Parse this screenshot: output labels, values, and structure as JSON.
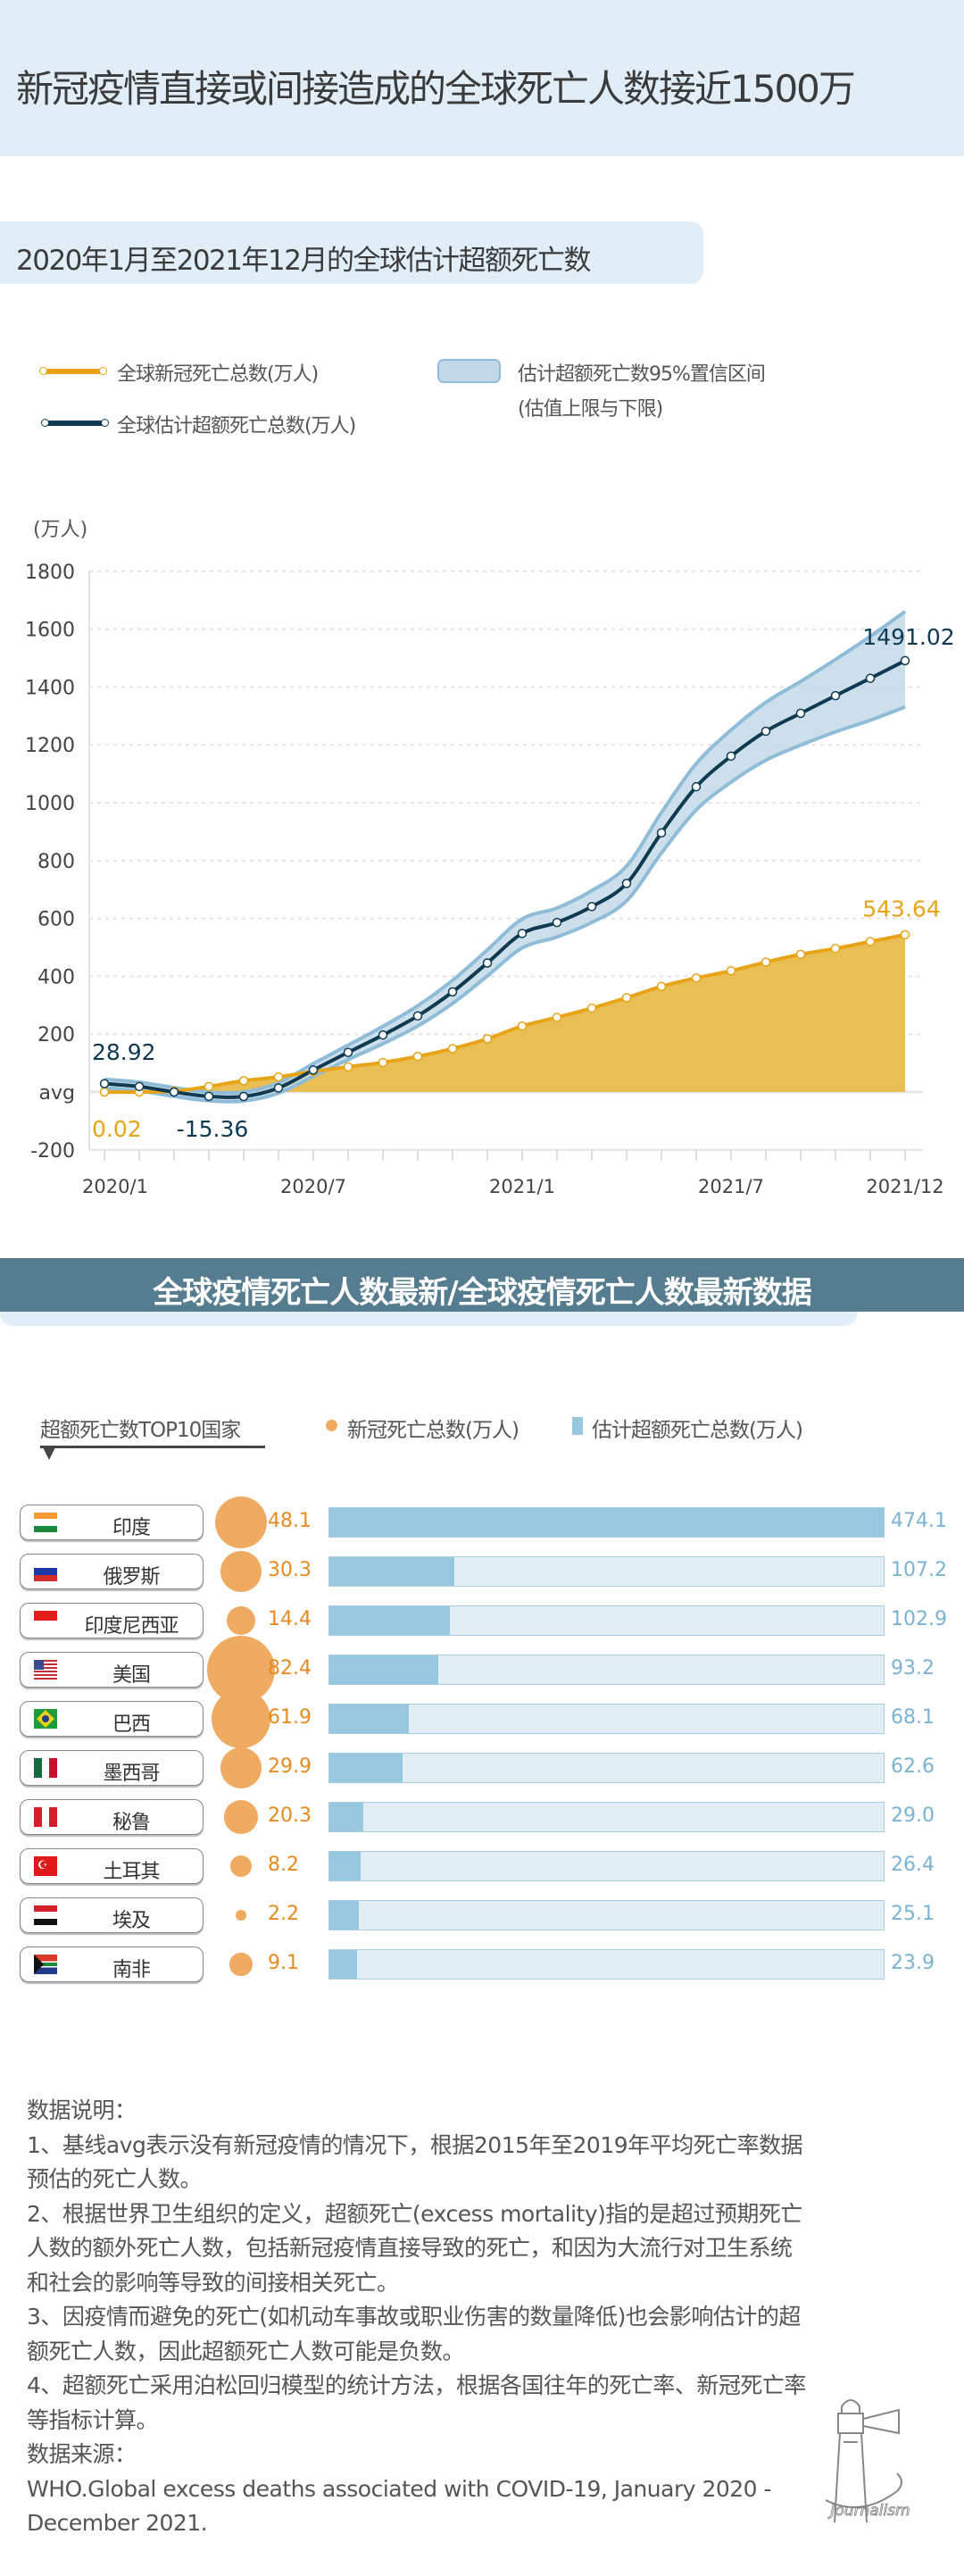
{
  "header": {
    "title": "新冠疫情直接或间接造成的全球死亡人数接近1500万"
  },
  "chart_section": {
    "subtitle": "2020年1月至2021年12月的全球估计超额死亡数"
  },
  "chart_data": {
    "type": "line",
    "title": "2020年1月至2021年12月的全球估计超额死亡数",
    "ylabel": "(万人)",
    "ylim": [
      -200,
      1800
    ],
    "yticks": [
      "-200",
      "avg",
      "200",
      "400",
      "600",
      "800",
      "1000",
      "1200",
      "1400",
      "1600",
      "1800"
    ],
    "ytick_values": [
      -200,
      0,
      200,
      400,
      600,
      800,
      1000,
      1200,
      1400,
      1600,
      1800
    ],
    "xticks": [
      "2020/1",
      "2020/7",
      "2021/1",
      "2021/7",
      "2021/12"
    ],
    "xtick_indices": [
      0,
      6,
      12,
      18,
      23
    ],
    "grid": true,
    "legend_position": "top",
    "x": [
      "2020/1",
      "2020/2",
      "2020/3",
      "2020/4",
      "2020/5",
      "2020/6",
      "2020/7",
      "2020/8",
      "2020/9",
      "2020/10",
      "2020/11",
      "2020/12",
      "2021/1",
      "2021/2",
      "2021/3",
      "2021/4",
      "2021/5",
      "2021/6",
      "2021/7",
      "2021/8",
      "2021/9",
      "2021/10",
      "2021/11",
      "2021/12"
    ],
    "series": [
      {
        "name": "全球新冠死亡总数(万人)",
        "color": "#e8a317",
        "fill": "#e9bf55",
        "values": [
          0.02,
          0,
          3,
          19,
          39,
          52,
          71,
          87,
          102,
          123,
          150,
          184,
          228,
          258,
          290,
          326,
          365,
          394,
          419,
          449,
          476,
          496,
          520,
          543.64
        ]
      },
      {
        "name": "全球估计超额死亡总数(万人)",
        "color": "#0f3a52",
        "values": [
          28.92,
          19,
          0,
          -15,
          -15.36,
          14,
          76,
          137,
          197,
          263,
          346,
          446,
          548,
          586,
          641,
          721,
          896,
          1055,
          1161,
          1247,
          1309,
          1370,
          1430,
          1491.02
        ]
      }
    ],
    "band": {
      "name": "估计超额死亡数95%置信区间 (估值上限与下限)",
      "color": "#c3d9e8",
      "edge": "#8fbcd8",
      "upper": [
        44,
        34,
        15,
        0,
        0,
        32,
        98,
        162,
        227,
        298,
        386,
        491,
        598,
        636,
        696,
        781,
        966,
        1135,
        1251,
        1347,
        1419,
        1495,
        1575,
        1661
      ],
      "lower": [
        14,
        4,
        -15,
        -30,
        -31,
        -4,
        54,
        112,
        167,
        228,
        306,
        401,
        498,
        536,
        586,
        661,
        826,
        975,
        1071,
        1147,
        1199,
        1245,
        1285,
        1331
      ]
    },
    "annotations": [
      "28.92",
      "0.02",
      "-15.36",
      "1491.02",
      "543.64"
    ]
  },
  "legend": {
    "covid": "全球新冠死亡总数(万人)",
    "excess": "全球估计超额死亡总数(万人)",
    "band_line1": "估计超额死亡数95%置信区间",
    "band_line2": "(估值上限与下限)"
  },
  "banner": {
    "text": "全球疫情死亡人数最新/全球疫情死亡人数最新数据"
  },
  "countries_section": {
    "heading": "超额死亡数TOP10国家",
    "legend_covid": "新冠死亡总数(万人)",
    "legend_excess": "估计超额死亡总数(万人)",
    "colors": {
      "covid": "#f0ab63",
      "excess": "#98c8e0"
    },
    "rows": [
      {
        "name": "印度",
        "flag": "india",
        "covid": "48.1",
        "excess": "474.1"
      },
      {
        "name": "俄罗斯",
        "flag": "russia",
        "covid": "30.3",
        "excess": "107.2"
      },
      {
        "name": "印度尼西亚",
        "flag": "indonesia",
        "covid": "14.4",
        "excess": "102.9"
      },
      {
        "name": "美国",
        "flag": "usa",
        "covid": "82.4",
        "excess": "93.2"
      },
      {
        "name": "巴西",
        "flag": "brazil",
        "covid": "61.9",
        "excess": "68.1"
      },
      {
        "name": "墨西哥",
        "flag": "mexico",
        "covid": "29.9",
        "excess": "62.6"
      },
      {
        "name": "秘鲁",
        "flag": "peru",
        "covid": "20.3",
        "excess": "29.0"
      },
      {
        "name": "土耳其",
        "flag": "turkey",
        "covid": "8.2",
        "excess": "26.4"
      },
      {
        "name": "埃及",
        "flag": "egypt",
        "covid": "2.2",
        "excess": "25.1"
      },
      {
        "name": "南非",
        "flag": "south-africa",
        "covid": "9.1",
        "excess": "23.9"
      }
    ]
  },
  "notes": {
    "lines": [
      "数据说明：",
      "1、基线avg表示没有新冠疫情的情况下，根据2015年至2019年平均死亡率数据预估的死亡人数。",
      "2、根据世界卫生组织的定义，超额死亡(excess mortality)指的是超过预期死亡人数的额外死亡人数，包括新冠疫情直接导致的死亡，和因为大流行对卫生系统和社会的影响等导致的间接相关死亡。",
      "3、因疫情而避免的死亡(如机动车事故或职业伤害的数量降低)也会影响估计的超额死亡人数，因此超额死亡人数可能是负数。",
      "4、超额死亡采用泊松回归模型的统计方法，根据各国往年的死亡率、新冠死亡率等指标计算。",
      "数据来源：",
      "WHO.Global excess deaths associated with COVID-19, January 2020 - December 2021."
    ]
  },
  "logo": {
    "text": "Journalism"
  }
}
